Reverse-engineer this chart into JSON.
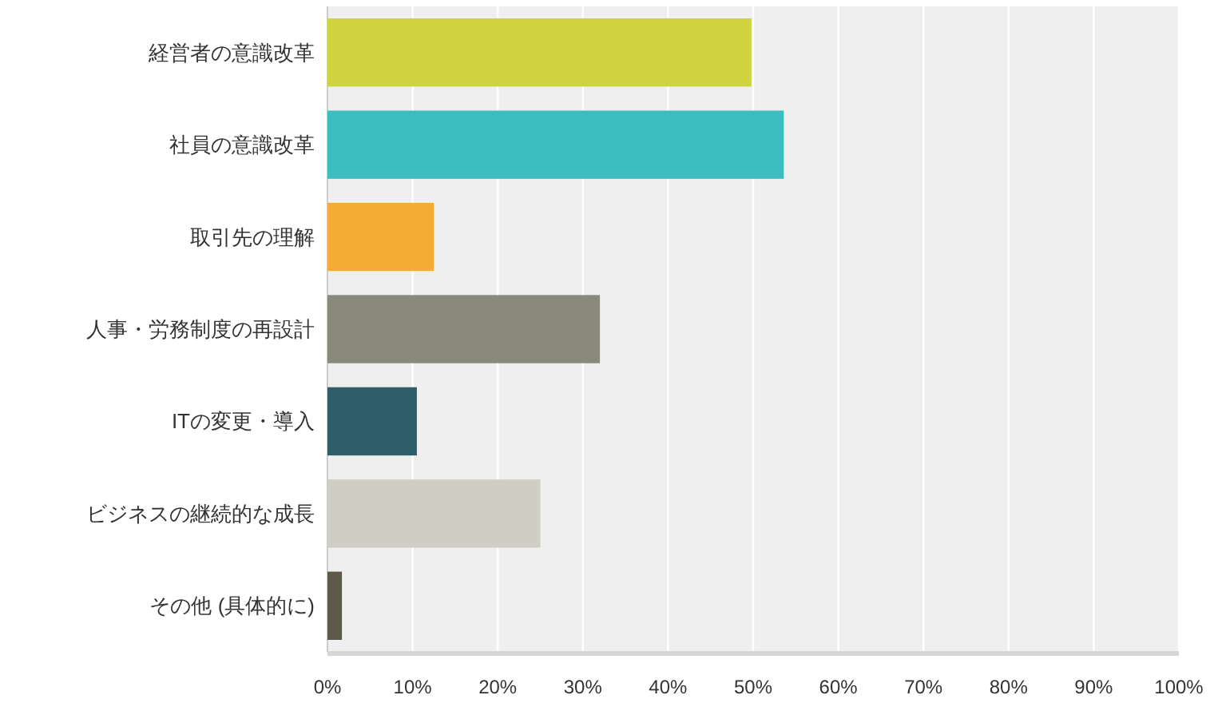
{
  "chart_data": {
    "type": "bar",
    "orientation": "horizontal",
    "categories": [
      "経営者の意識改革",
      "社員の意識改革",
      "取引先の理解",
      "人事・労務制度の再設計",
      "ITの変更・導入",
      "ビジネスの継続的な成長",
      "その他 (具体的に)"
    ],
    "values": [
      49.8,
      53.6,
      12.5,
      32.0,
      10.5,
      25.0,
      1.7
    ],
    "colors": [
      "#cfd33d",
      "#3cbdc0",
      "#f5ac35",
      "#898a7b",
      "#2e5e6a",
      "#d0cec2",
      "#5d5a4b"
    ],
    "xlim": [
      0,
      100
    ],
    "xticks": [
      {
        "value": 0,
        "label": "0%"
      },
      {
        "value": 10,
        "label": "10%"
      },
      {
        "value": 20,
        "label": "20%"
      },
      {
        "value": 30,
        "label": "30%"
      },
      {
        "value": 40,
        "label": "40%"
      },
      {
        "value": 50,
        "label": "50%"
      },
      {
        "value": 60,
        "label": "60%"
      },
      {
        "value": 70,
        "label": "70%"
      },
      {
        "value": 80,
        "label": "80%"
      },
      {
        "value": 90,
        "label": "90%"
      },
      {
        "value": 100,
        "label": "100%"
      }
    ],
    "grid": "x"
  }
}
